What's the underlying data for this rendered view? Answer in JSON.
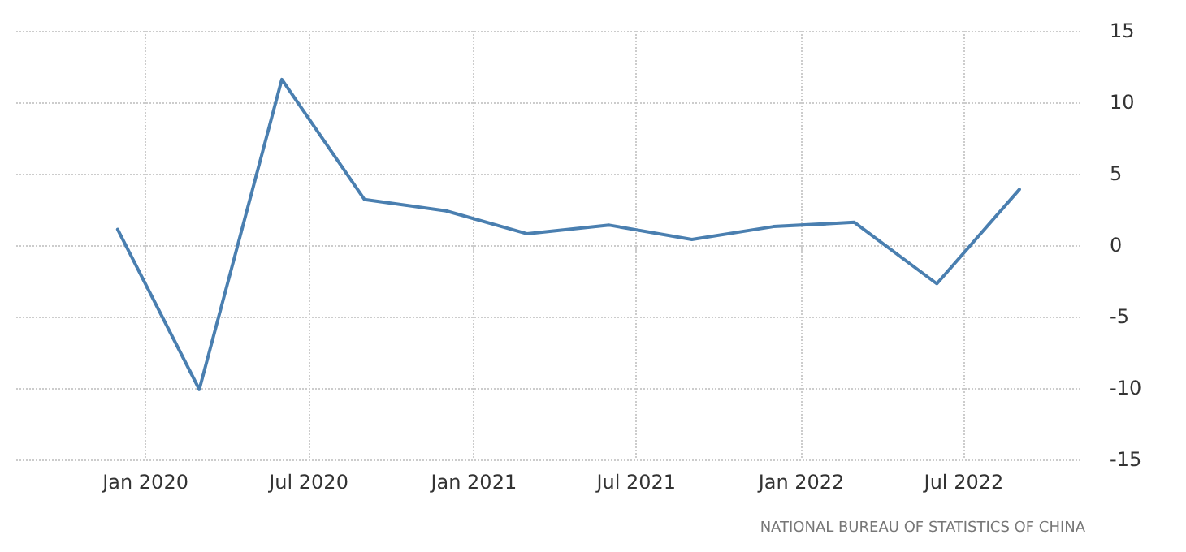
{
  "chart_data": {
    "type": "line",
    "x": [
      "2019-12",
      "2020-03",
      "2020-06",
      "2020-09",
      "2020-12",
      "2021-03",
      "2021-06",
      "2021-09",
      "2021-12",
      "2022-03",
      "2022-06",
      "2022-09"
    ],
    "series": [
      {
        "color": "#4a7fb0",
        "values": [
          1.1,
          -10.1,
          11.6,
          3.2,
          2.4,
          0.8,
          1.4,
          0.4,
          1.3,
          1.6,
          -2.7,
          3.9
        ]
      }
    ],
    "xlim": [
      "2019-08-10",
      "2022-11-08"
    ],
    "xticks": [
      {
        "value": "2020-01",
        "label": "Jan 2020"
      },
      {
        "value": "2020-07",
        "label": "Jul 2020"
      },
      {
        "value": "2021-01",
        "label": "Jan 2021"
      },
      {
        "value": "2021-07",
        "label": "Jul 2021"
      },
      {
        "value": "2022-01",
        "label": "Jan 2022"
      },
      {
        "value": "2022-07",
        "label": "Jul 2022"
      }
    ],
    "ylim": [
      -15,
      15
    ],
    "yticks": [
      -15,
      -10,
      -5,
      0,
      5,
      10,
      15
    ],
    "grid": true,
    "marker": "none",
    "line_style": "solid",
    "annotations": [
      "NATIONAL BUREAU OF STATISTICS OF CHINA"
    ]
  }
}
